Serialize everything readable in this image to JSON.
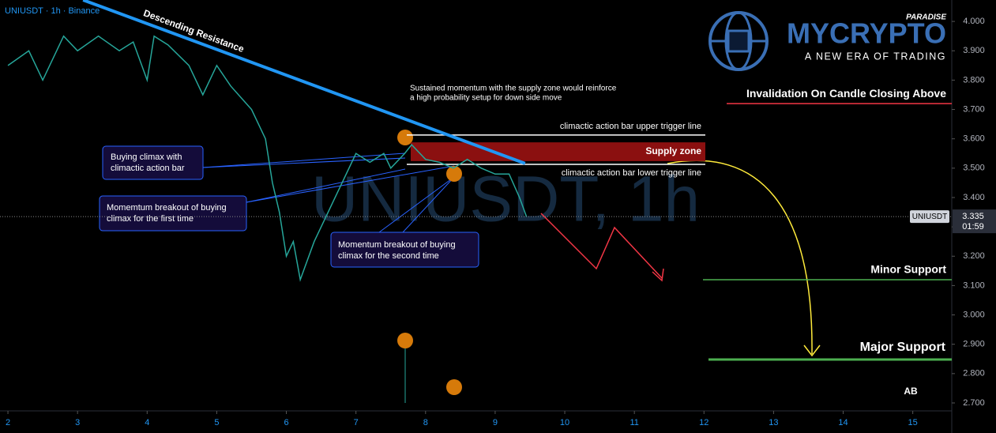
{
  "chart_data": {
    "type": "line",
    "title": "UNIUSDT · 1h · Binance",
    "watermark": "UNIUSDT, 1h",
    "x": [
      2,
      2.3,
      2.5,
      2.8,
      3,
      3.3,
      3.6,
      3.8,
      4,
      4.1,
      4.3,
      4.6,
      4.8,
      5,
      5.2,
      5.5,
      5.7,
      5.8,
      5.9,
      6,
      6.1,
      6.2,
      6.4,
      6.6,
      6.8,
      7,
      7.2,
      7.4,
      7.5,
      7.7,
      7.8,
      8,
      8.2,
      8.4,
      8.6,
      8.8,
      9,
      9.2,
      9.35,
      9.45
    ],
    "series": [
      {
        "name": "UNIUSDT",
        "color": "#26a69a",
        "values": [
          3.85,
          3.9,
          3.8,
          3.95,
          3.9,
          3.95,
          3.9,
          3.93,
          3.8,
          3.95,
          3.92,
          3.85,
          3.75,
          3.85,
          3.78,
          3.7,
          3.6,
          3.45,
          3.35,
          3.2,
          3.25,
          3.12,
          3.25,
          3.35,
          3.45,
          3.55,
          3.52,
          3.55,
          3.5,
          3.55,
          3.58,
          3.53,
          3.52,
          3.5,
          3.53,
          3.5,
          3.48,
          3.48,
          3.4,
          3.335
        ]
      }
    ],
    "last_price": 3.335,
    "countdown": "01:59",
    "xlim": [
      1.886,
      15.56
    ],
    "ylim": [
      2.673,
      4.073
    ],
    "xticks": [
      2,
      3,
      4,
      5,
      6,
      7,
      8,
      9,
      10,
      11,
      12,
      13,
      14,
      15
    ],
    "yticks": [
      {
        "value": 2.7,
        "label": "2.700"
      },
      {
        "value": 2.8,
        "label": "2.800"
      },
      {
        "value": 2.9,
        "label": "2.900"
      },
      {
        "value": 3.0,
        "label": "3.000"
      },
      {
        "value": 3.1,
        "label": "3.100"
      },
      {
        "value": 3.2,
        "label": "3.200"
      },
      {
        "value": 3.3,
        "label": "3.300"
      },
      {
        "value": 3.4,
        "label": "3.400"
      },
      {
        "value": 3.5,
        "label": "3.500"
      },
      {
        "value": 3.6,
        "label": "3.600"
      },
      {
        "value": 3.7,
        "label": "3.700"
      },
      {
        "value": 3.8,
        "label": "3.800"
      },
      {
        "value": 3.9,
        "label": "3.900"
      },
      {
        "value": 4.0,
        "label": "4.000"
      }
    ],
    "resistance_line": {
      "label": "Descending Resistance",
      "color": "#2196f3",
      "x": [
        3.08,
        9.43
      ],
      "y": [
        4.073,
        3.516
      ]
    },
    "levels": [
      {
        "label": "Invalidation On Candle Closing Above",
        "value": 3.72,
        "color": "#f23645"
      },
      {
        "label": "climactic action bar upper trigger line",
        "value": 3.613,
        "color": "#ffffff"
      },
      {
        "label": "climactic action bar lower trigger line",
        "value": 3.513,
        "color": "#ffffff"
      },
      {
        "label": "Minor Support",
        "value": 3.12,
        "color": "#4caf50"
      },
      {
        "label": "Major Support",
        "value": 2.848,
        "color": "#4caf50"
      }
    ],
    "supply_zone": {
      "label": "Supply zone",
      "range": [
        3.524,
        3.588
      ],
      "color": "#8b1010"
    },
    "callouts": [
      [
        "Buying climax with",
        "climactic action bar"
      ],
      [
        "Momemtum breakout of buying",
        "climax for the first time"
      ],
      [
        "Momentum breakout of buying",
        "climax for the second time"
      ]
    ],
    "note": [
      "Sustained momentum with the supply zone would reinforce",
      " a high probability setup for down side move"
    ],
    "price_label": "UNIUSDT",
    "author": "AB"
  },
  "logo": {
    "brand": "MYCRYPTO",
    "tag": "PARADISE",
    "slogan": "A NEW ERA OF TRADING"
  }
}
